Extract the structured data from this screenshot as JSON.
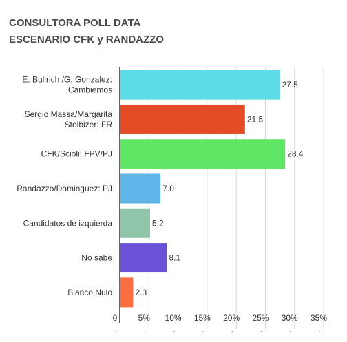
{
  "title_lines": [
    "CONSULTORA POLL DATA",
    "ESCENARIO CFK y RANDAZZO"
  ],
  "chart_data": {
    "type": "bar",
    "orientation": "horizontal",
    "title": "CONSULTORA POLL DATA ESCENARIO CFK y RANDAZZO",
    "categories": [
      [
        "E. Bullrich /G. Gonzalez:",
        "Cambiemos"
      ],
      [
        "Sergio Massa/Margarita",
        "Stolbizer: FR"
      ],
      [
        "CFK/Scioli: FPV/PJ"
      ],
      [
        "Randazzo/Dominguez: PJ"
      ],
      [
        "Candidatos de izquierda"
      ],
      [
        "No sabe"
      ],
      [
        "Blanco Nulo"
      ]
    ],
    "values": [
      27.5,
      21.5,
      28.4,
      7.0,
      5.2,
      8.1,
      2.3
    ],
    "value_labels": [
      "27.5",
      "21.5",
      "28.4",
      "7.0",
      "5.2",
      "8.1",
      "2.3"
    ],
    "colors": [
      "#5ddbe6",
      "#e34c26",
      "#5fe665",
      "#5fb5e8",
      "#8fc6aa",
      "#6a51d8",
      "#fa6e42"
    ],
    "xlim": [
      0,
      35
    ],
    "xticks": [
      0,
      5,
      10,
      15,
      20,
      25,
      30,
      35
    ],
    "xtick_labels": [
      "0",
      "5%",
      "10%",
      "15%",
      "20%",
      "25%",
      "30%",
      "35%"
    ],
    "grid": true,
    "legend": "none"
  }
}
